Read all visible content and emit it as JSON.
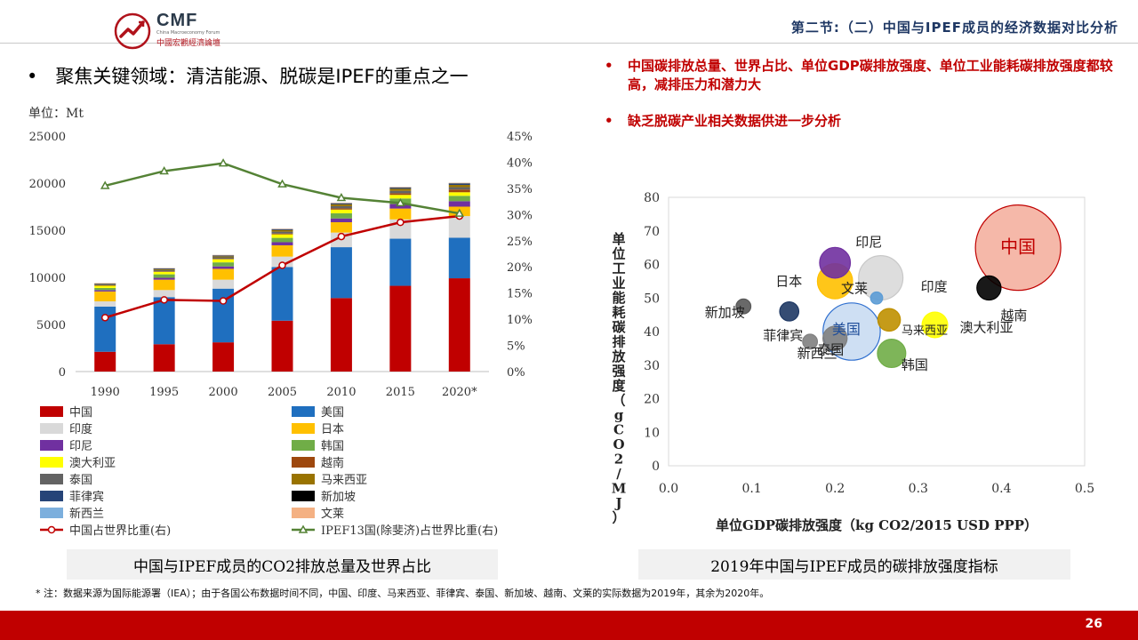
{
  "header": {
    "logo_text": "CMF",
    "logo_sub_en": "China Macroeconomy Forum",
    "logo_sub_cn": "中國宏觀經濟論壇",
    "section_title": "第二节:（二）中国与IPEF成员的经济数据对比分析"
  },
  "main": {
    "heading_bullet": "•",
    "heading": "聚焦关键领域：清洁能源、脱碳是IPEF的重点之一",
    "bullets": [
      {
        "dot": "•",
        "text": "中国碳排放总量、世界占比、单位GDP碳排放强度、单位工业能耗碳排放强度都较高，减排压力和潜力大"
      },
      {
        "dot": "•",
        "text": "缺乏脱碳产业相关数据供进一步分析"
      }
    ],
    "caption_left": "中国与IPEF成员的CO2排放总量及世界占比",
    "caption_right": "2019年中国与IPEF成员的碳排放强度指标"
  },
  "footnote": "* 注：数据来源为国际能源署（IEA）；由于各国公布数据时间不同，中国、印度、马来西亚、菲律宾、泰国、新加坡、越南、文莱的实际数据为2019年，其余为2020年。",
  "page_number": "26",
  "colors": {
    "brand_red": "#c00000",
    "title_blue": "#1f3864"
  },
  "chart_data": [
    {
      "type": "bar",
      "stacked": true,
      "unit_label": "单位：Mt",
      "categories": [
        "1990",
        "1995",
        "2000",
        "2005",
        "2010",
        "2015",
        "2020*"
      ],
      "ylim": [
        0,
        25000
      ],
      "yticks": [
        "0",
        "5000",
        "10000",
        "15000",
        "20000",
        "25000"
      ],
      "y2lim": [
        0,
        45
      ],
      "y2ticks": [
        "0%",
        "5%",
        "10%",
        "15%",
        "20%",
        "25%",
        "30%",
        "35%",
        "40%",
        "45%"
      ],
      "series": [
        {
          "name": "中国",
          "color": "#c00000",
          "values": [
            2100,
            2900,
            3100,
            5400,
            7800,
            9100,
            9900
          ]
        },
        {
          "name": "美国",
          "color": "#1f6fbf",
          "values": [
            4800,
            5000,
            5700,
            5700,
            5400,
            5000,
            4300
          ]
        },
        {
          "name": "印度",
          "color": "#d9d9d9",
          "values": [
            550,
            750,
            950,
            1100,
            1550,
            2050,
            2300
          ]
        },
        {
          "name": "日本",
          "color": "#ffc000",
          "values": [
            1050,
            1100,
            1150,
            1200,
            1100,
            1150,
            1000
          ]
        },
        {
          "name": "印尼",
          "color": "#7030a0",
          "values": [
            140,
            200,
            260,
            330,
            400,
            480,
            580
          ]
        },
        {
          "name": "韩国",
          "color": "#70ad47",
          "values": [
            230,
            370,
            430,
            460,
            550,
            590,
            570
          ]
        },
        {
          "name": "澳大利亚",
          "color": "#ffff00",
          "values": [
            260,
            280,
            330,
            370,
            390,
            380,
            380
          ]
        },
        {
          "name": "越南",
          "color": "#9e480e",
          "values": [
            20,
            30,
            50,
            90,
            130,
            180,
            290
          ]
        },
        {
          "name": "泰国",
          "color": "#636363",
          "values": [
            80,
            140,
            150,
            200,
            230,
            250,
            250
          ]
        },
        {
          "name": "马来西亚",
          "color": "#997300",
          "values": [
            50,
            80,
            110,
            160,
            190,
            220,
            240
          ]
        },
        {
          "name": "菲律宾",
          "color": "#264478",
          "values": [
            40,
            60,
            70,
            70,
            80,
            100,
            130
          ]
        },
        {
          "name": "新加坡",
          "color": "#000000",
          "values": [
            30,
            40,
            40,
            40,
            50,
            50,
            50
          ]
        },
        {
          "name": "新西兰",
          "color": "#7cafdd",
          "values": [
            25,
            25,
            30,
            35,
            32,
            32,
            32
          ]
        },
        {
          "name": "文莱",
          "color": "#f4b183",
          "values": [
            4,
            5,
            5,
            6,
            7,
            8,
            8
          ]
        }
      ],
      "lines": [
        {
          "name": "中国占世界比重(右)",
          "color": "#c00000",
          "marker": "circle",
          "values": [
            10.3,
            13.7,
            13.5,
            20.3,
            25.8,
            28.5,
            29.7
          ]
        },
        {
          "name": "IPEF13国(除斐济)占世界比重(右)",
          "color": "#548235",
          "marker": "triangle",
          "values": [
            35.5,
            38.3,
            39.8,
            35.8,
            33.2,
            32.2,
            30.2
          ]
        }
      ]
    },
    {
      "type": "scatter",
      "subtype": "bubble",
      "xlabel": "单位GDP碳排放强度（kg CO2/2015 USD PPP）",
      "ylabel": "单位工业能耗碳排放强度（gCO2/MJ）",
      "xlim": [
        0,
        0.5
      ],
      "ylim": [
        0,
        80
      ],
      "xticks": [
        "0.0",
        "0.1",
        "0.2",
        "0.3",
        "0.4",
        "0.5"
      ],
      "yticks": [
        "0",
        "10",
        "20",
        "30",
        "40",
        "50",
        "60",
        "70",
        "80"
      ],
      "points": [
        {
          "name": "中国",
          "x": 0.42,
          "y": 65,
          "size": 100,
          "color": "#f4b0a0",
          "edge": "#c00000"
        },
        {
          "name": "美国",
          "x": 0.22,
          "y": 40,
          "size": 45,
          "color": "#c9dcf2",
          "edge": "#2f6fcf"
        },
        {
          "name": "印度",
          "x": 0.255,
          "y": 56,
          "size": 27,
          "color": "#d9d9d9",
          "edge": "#c8c8c8"
        },
        {
          "name": "日本",
          "x": 0.2,
          "y": 55,
          "size": 17,
          "color": "#ffc000",
          "edge": "#ffc000"
        },
        {
          "name": "印尼",
          "x": 0.2,
          "y": 60.5,
          "size": 13,
          "color": "#7030a0",
          "edge": "#7030a0"
        },
        {
          "name": "韩国",
          "x": 0.268,
          "y": 33.5,
          "size": 11,
          "color": "#70ad47",
          "edge": "#70ad47"
        },
        {
          "name": "澳大利亚",
          "x": 0.32,
          "y": 42,
          "size": 9,
          "color": "#ffff00",
          "edge": "#ffff00"
        },
        {
          "name": "越南",
          "x": 0.385,
          "y": 53,
          "size": 8,
          "color": "#000000",
          "edge": "#000000"
        },
        {
          "name": "泰国",
          "x": 0.2,
          "y": 38,
          "size": 8,
          "color": "#7f7f7f",
          "edge": "#7f7f7f"
        },
        {
          "name": "马来西亚",
          "x": 0.265,
          "y": 43.5,
          "size": 7,
          "color": "#bf9000",
          "edge": "#bf9000"
        },
        {
          "name": "菲律宾",
          "x": 0.145,
          "y": 46,
          "size": 5,
          "color": "#1f3864",
          "edge": "#1f3864"
        },
        {
          "name": "新加坡",
          "x": 0.09,
          "y": 47.5,
          "size": 3,
          "color": "#595959",
          "edge": "#595959"
        },
        {
          "name": "新西兰",
          "x": 0.17,
          "y": 37,
          "size": 3,
          "color": "#808080",
          "edge": "#808080"
        },
        {
          "name": "文莱",
          "x": 0.25,
          "y": 50,
          "size": 2,
          "color": "#5b9bd5",
          "edge": "#5b9bd5"
        }
      ]
    }
  ]
}
